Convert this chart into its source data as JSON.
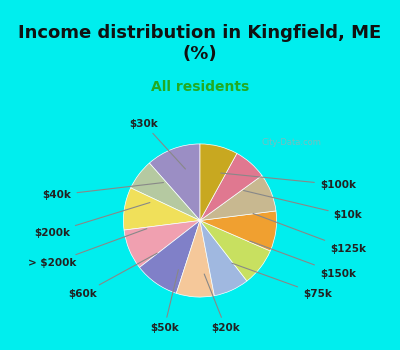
{
  "title": "Income distribution in Kingfield, ME\n(%)",
  "subtitle": "All residents",
  "title_color": "#111111",
  "subtitle_color": "#22aa22",
  "background_color": "#00eeee",
  "chart_bg_color": "#e8f5e8",
  "watermark": "City-Data.com",
  "labels": [
    "$100k",
    "$10k",
    "$125k",
    "$150k",
    "$75k",
    "$20k",
    "$50k",
    "$60k",
    "> $200k",
    "$200k",
    "$40k",
    "$30k"
  ],
  "values": [
    11.5,
    6.5,
    9.0,
    8.5,
    9.5,
    8.0,
    7.5,
    8.0,
    8.5,
    8.0,
    7.0,
    8.0
  ],
  "colors": [
    "#9b8ec4",
    "#b5c9a1",
    "#f0e05a",
    "#f0a0b0",
    "#8080c8",
    "#f5c89a",
    "#a0b8e0",
    "#c8e060",
    "#f0a030",
    "#c8b890",
    "#e07890",
    "#c8a820"
  ],
  "label_positions": {
    "$100k": "right",
    "$10k": "right",
    "$125k": "right",
    "$150k": "right",
    "$75k": "right",
    "$20k": "bottom",
    "$50k": "bottom",
    "$60k": "left",
    "> $200k": "left",
    "$200k": "left",
    "$40k": "left",
    "$30k": "top"
  }
}
